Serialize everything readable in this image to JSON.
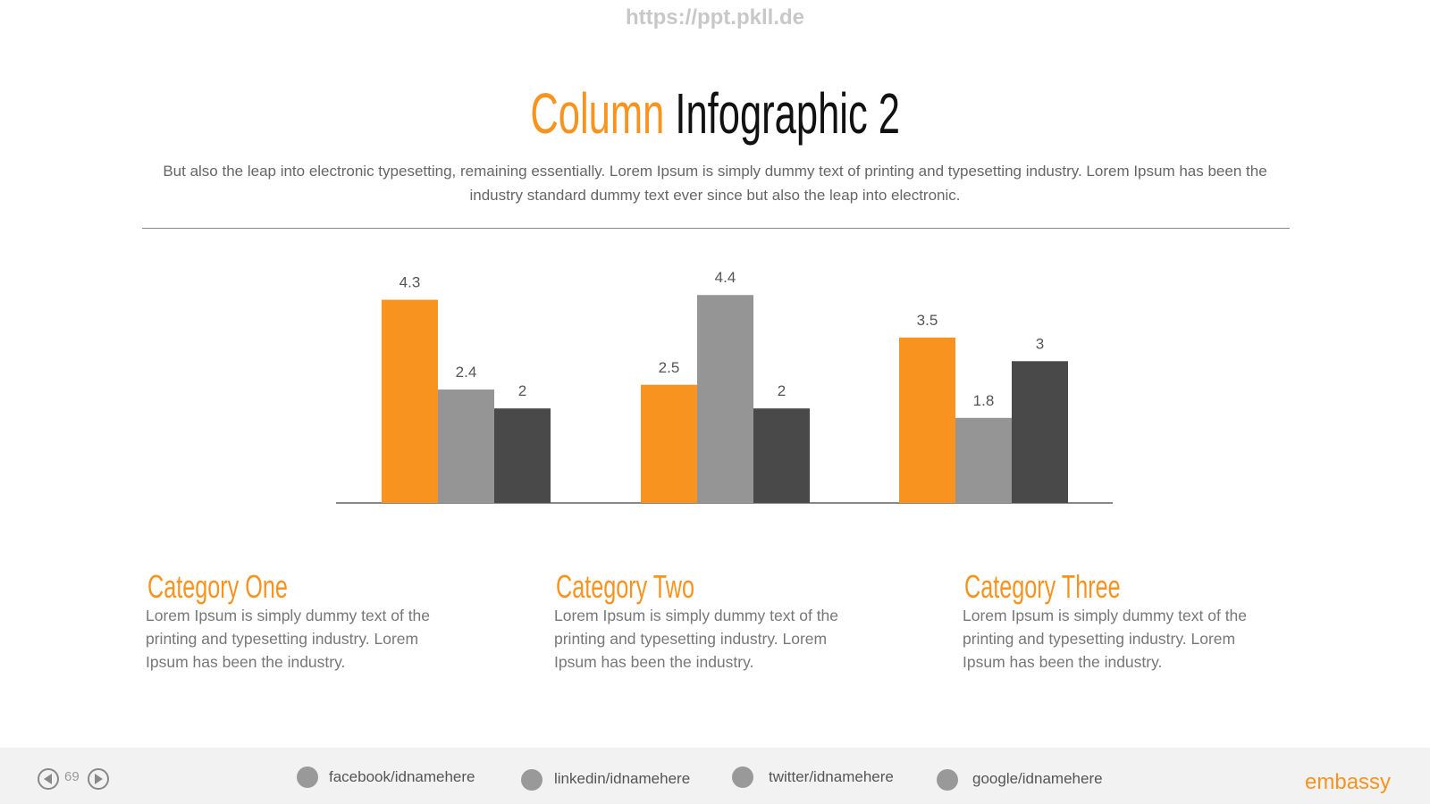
{
  "header": {
    "url": "https://ppt.pkll.de",
    "title_highlight": "Column",
    "title": "Infographic 2",
    "subtitle": "But also the leap into electronic typesetting, remaining essentially. Lorem Ipsum is simply dummy text of printing and typesetting industry. Lorem Ipsum has been the industry standard dummy text ever since but also the leap into electronic."
  },
  "chart_data": {
    "type": "bar",
    "categories": [
      "Category One",
      "Category Two",
      "Category Three"
    ],
    "series": [
      {
        "color": "#f7931e",
        "values": [
          4.3,
          2.5,
          3.5
        ]
      },
      {
        "color": "#969595",
        "values": [
          2.4,
          4.4,
          1.8
        ]
      },
      {
        "color": "#4a4949",
        "values": [
          2,
          2,
          3
        ]
      }
    ]
  },
  "descriptions": [
    "Lorem Ipsum is simply dummy text of the printing and typesetting industry. Lorem Ipsum has been the industry.",
    "Lorem Ipsum is simply dummy text of the printing and typesetting industry. Lorem Ipsum has been the industry.",
    "Lorem Ipsum is simply dummy text of the printing and typesetting industry. Lorem Ipsum has been the industry."
  ],
  "footer": {
    "page": "69",
    "links": [
      "facebook/idnamehere",
      "linkedin/idnamehere",
      "twitter/idnamehere",
      "google/idnamehere"
    ],
    "logo": "embassy"
  }
}
